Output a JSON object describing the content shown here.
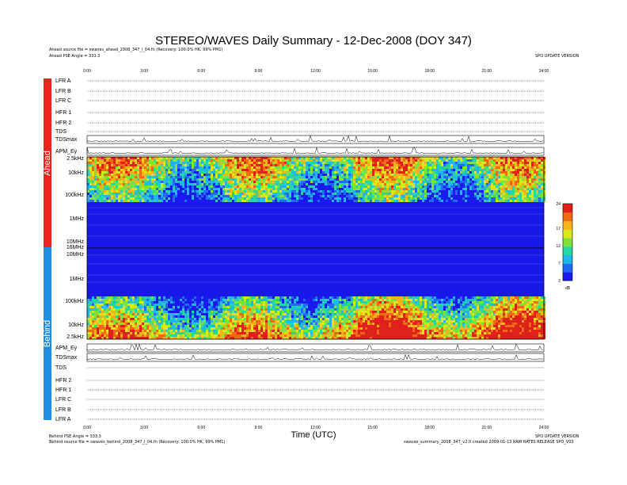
{
  "title": "STEREO/WAVES Daily Summary - 12-Dec-2008 (DOY 347)",
  "ahead": {
    "source_line": "Ahead source file = swaves_ahead_2008_347_l_04.fn (Recovery: 100.0% HK, 99% PM1)",
    "pse_line": "Ahead PSE Angle = 333.3",
    "right_note": "SPO UPDATE VERSION",
    "band_label": "Ahead",
    "band_color": "#e8241c"
  },
  "behind": {
    "source_line": "Behind source file = swaves_behind_2008_347_l_04.fn (Recovery: 100.0% HK, 99% PM1)",
    "pse_line": "Behind PSE Angle = 333.3",
    "right_note": "SPO UPDATE VERSION",
    "footer_note": "swaves_summary_2008_347_v2.0 created 2009-01-13 RAW RATES RELEASE SPO_V03",
    "band_label": "Behind",
    "band_color": "#1e8fe0"
  },
  "chart_data": {
    "type": "heatmap",
    "xlabel": "Time (UTC)",
    "x_ticks": [
      "0:00",
      "3:00",
      "6:00",
      "9:00",
      "12:00",
      "15:00",
      "18:00",
      "21:00",
      "24:00"
    ],
    "xlim_hours": [
      0,
      24
    ],
    "top_rows": [
      "LFR A",
      "LFR B",
      "LFR C",
      "HFR 1",
      "HFR 2",
      "TDS",
      "TDSmax",
      "APM_Ey"
    ],
    "bottom_rows": [
      "APM_Ey",
      "TDSmax",
      "TDS",
      "HFR 2",
      "HFR 1",
      "LFR C",
      "LFR B",
      "LFR A"
    ],
    "ahead_freq_ticks": [
      "2.5kHz",
      "10kHz",
      "100kHz",
      "1MHz",
      "10MHz"
    ],
    "behind_freq_ticks": [
      "16MHz",
      "10MHz",
      "1MHz",
      "100kHz",
      "10kHz",
      "2.5kHz"
    ],
    "colorbar": {
      "unit": "dB",
      "range": [
        2,
        24
      ],
      "ticks": [
        24,
        17,
        12,
        7,
        2
      ]
    },
    "grid": false
  }
}
